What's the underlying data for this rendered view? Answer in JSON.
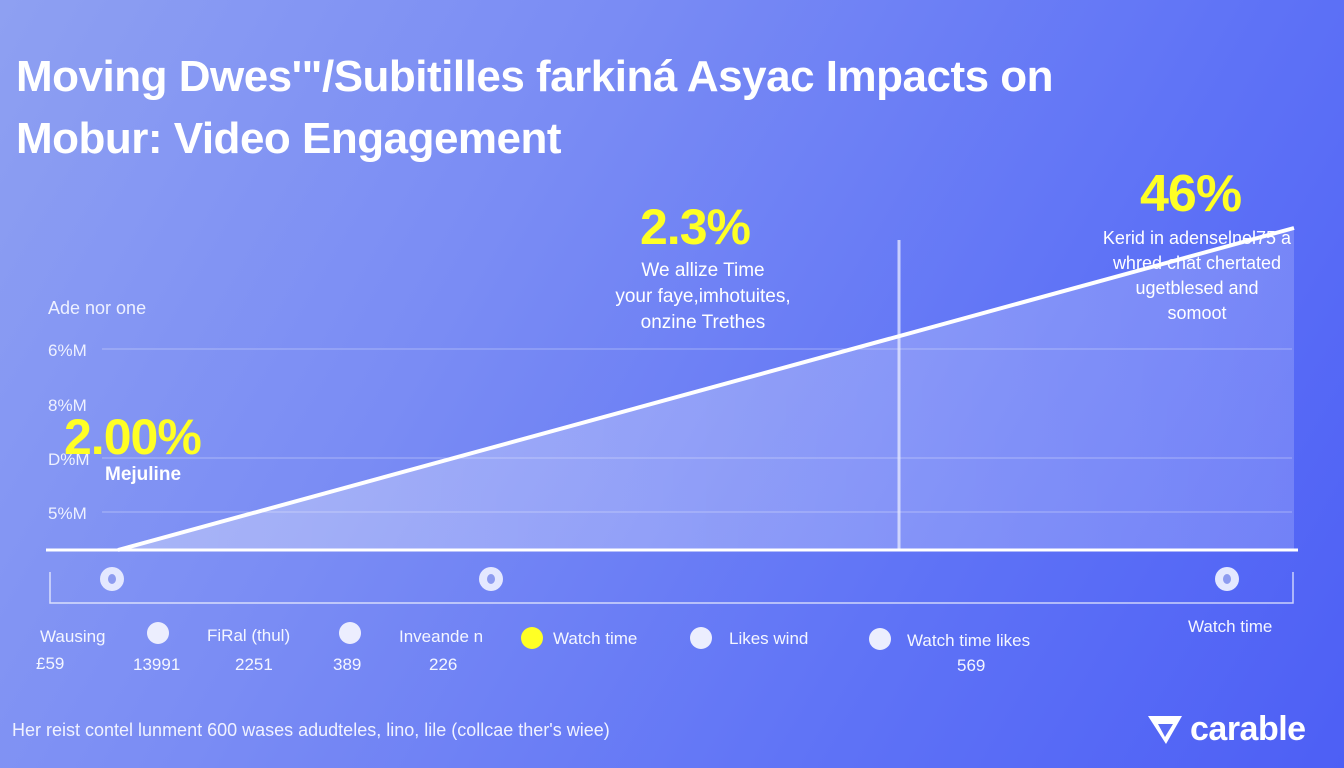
{
  "title": {
    "line1": "Moving Dwes'\"/Subitilles farkiná Asyac Impacts on",
    "line2": "Mobur: Video Engagement"
  },
  "y_axis": {
    "label": "Ade nor one",
    "ticks": [
      "6%M",
      "8%M",
      "D%M",
      "5%M"
    ]
  },
  "callouts": {
    "left_value": "2.00%",
    "left_label": "Mejuline",
    "mid_value": "2.3%",
    "mid_text": [
      "We allize Time",
      "your faye,imhotuites,",
      "onzine Trethes"
    ],
    "right_value": "46%",
    "right_text": [
      "Kerid in adenselnel75 a",
      "whred chat chertated",
      "ugetblesed and",
      "somoot"
    ]
  },
  "legend": {
    "items": [
      {
        "label": "Wausing",
        "value": "£59"
      },
      {
        "label": "",
        "value": "13991"
      },
      {
        "label": "FiRal (thul)",
        "value": "2251"
      },
      {
        "label": "",
        "value": "389"
      },
      {
        "label": "Inveande n",
        "value": "226"
      },
      {
        "label": "Watch time",
        "value": ""
      },
      {
        "label": "Likes wind",
        "value": ""
      },
      {
        "label": "Watch time likes",
        "value": "569"
      }
    ],
    "right_label": "Watch time"
  },
  "footer_note": "Her reist contel lunment 600 wases adudteles, lino, lile (collcae ther's wiee)",
  "brand": "carable",
  "colors": {
    "accent_yellow": "#ffff24",
    "line": "#ffffff",
    "background_start": "#8ea0f2",
    "background_end": "#4d5ff5"
  },
  "chart_data": {
    "type": "area",
    "title": "Moving Dwes'\"/Subitilles farkiná Asyac Impacts on Mobur: Video Engagement",
    "ylabel": "Ade nor one",
    "y_ticks": [
      "6%M",
      "8%M",
      "D%M",
      "5%M"
    ],
    "x": [
      0,
      1
    ],
    "series": [
      {
        "name": "",
        "values": [
          0,
          1
        ]
      }
    ],
    "annotations": [
      {
        "text": "2.00%",
        "sublabel": "Mejuline",
        "at": "start"
      },
      {
        "text": "2.3%",
        "sublabel": "We allize Time your faye,imhotuites, onzine Trethes",
        "at": "middle"
      },
      {
        "text": "46%",
        "sublabel": "Kerid in adenselnel75 a whred chat chertated ugetblesed and somoot",
        "at": "end"
      }
    ],
    "grid": true,
    "legend_position": "bottom"
  }
}
